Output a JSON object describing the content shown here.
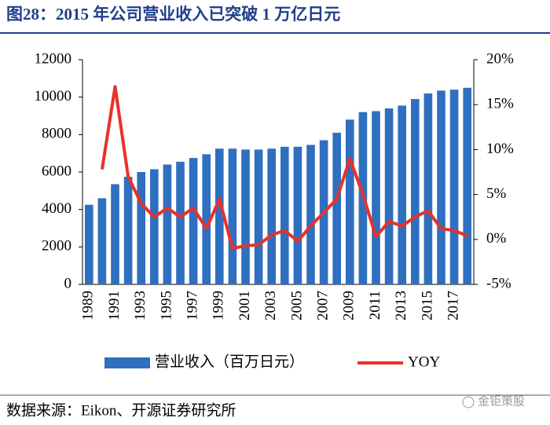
{
  "title": "图28：2015 年公司营业收入已突破 1 万亿日元",
  "source": "数据来源：Eikon、开源证券研究所",
  "watermark": "金钜策股",
  "chart_data": {
    "type": "bar-line",
    "categories": [
      "1989",
      null,
      "1991",
      null,
      "1993",
      null,
      "1995",
      null,
      "1997",
      null,
      "1999",
      null,
      "2001",
      null,
      "2003",
      null,
      "2005",
      null,
      "2007",
      null,
      "2009",
      null,
      "2011",
      null,
      "2013",
      null,
      "2015",
      null,
      "2017",
      null
    ],
    "series": [
      {
        "name": "营业收入（百万日元）",
        "type": "bar",
        "color": "#2e6fc0",
        "values": [
          4250,
          4600,
          5350,
          5750,
          6000,
          6150,
          6400,
          6550,
          6750,
          6950,
          7250,
          7250,
          7200,
          7200,
          7250,
          7350,
          7350,
          7450,
          7700,
          8100,
          8800,
          9200,
          9250,
          9400,
          9550,
          9900,
          10200,
          10350,
          10400,
          10500
        ]
      },
      {
        "name": "YOY",
        "type": "line",
        "axis": "y2",
        "color": "#e8312a",
        "values": [
          null,
          7.8,
          17,
          7,
          4,
          2.5,
          3.5,
          2.5,
          3.5,
          1.2,
          4.5,
          -1,
          -0.7,
          -0.6,
          0.5,
          1,
          -0.2,
          1.5,
          3,
          4.5,
          9,
          5,
          0.3,
          2,
          1.5,
          2.5,
          3.2,
          1.2,
          1,
          0.4
        ]
      }
    ],
    "ylim": [
      0,
      12000
    ],
    "yticks": [
      0,
      2000,
      4000,
      6000,
      8000,
      10000,
      12000
    ],
    "y2lim": [
      -5,
      20
    ],
    "y2ticks": [
      {
        "value": -5,
        "label": "-5%"
      },
      {
        "value": 0,
        "label": "0%"
      },
      {
        "value": 5,
        "label": "5%"
      },
      {
        "value": 10,
        "label": "10%"
      },
      {
        "value": 15,
        "label": "15%"
      },
      {
        "value": 20,
        "label": "20%"
      }
    ]
  }
}
